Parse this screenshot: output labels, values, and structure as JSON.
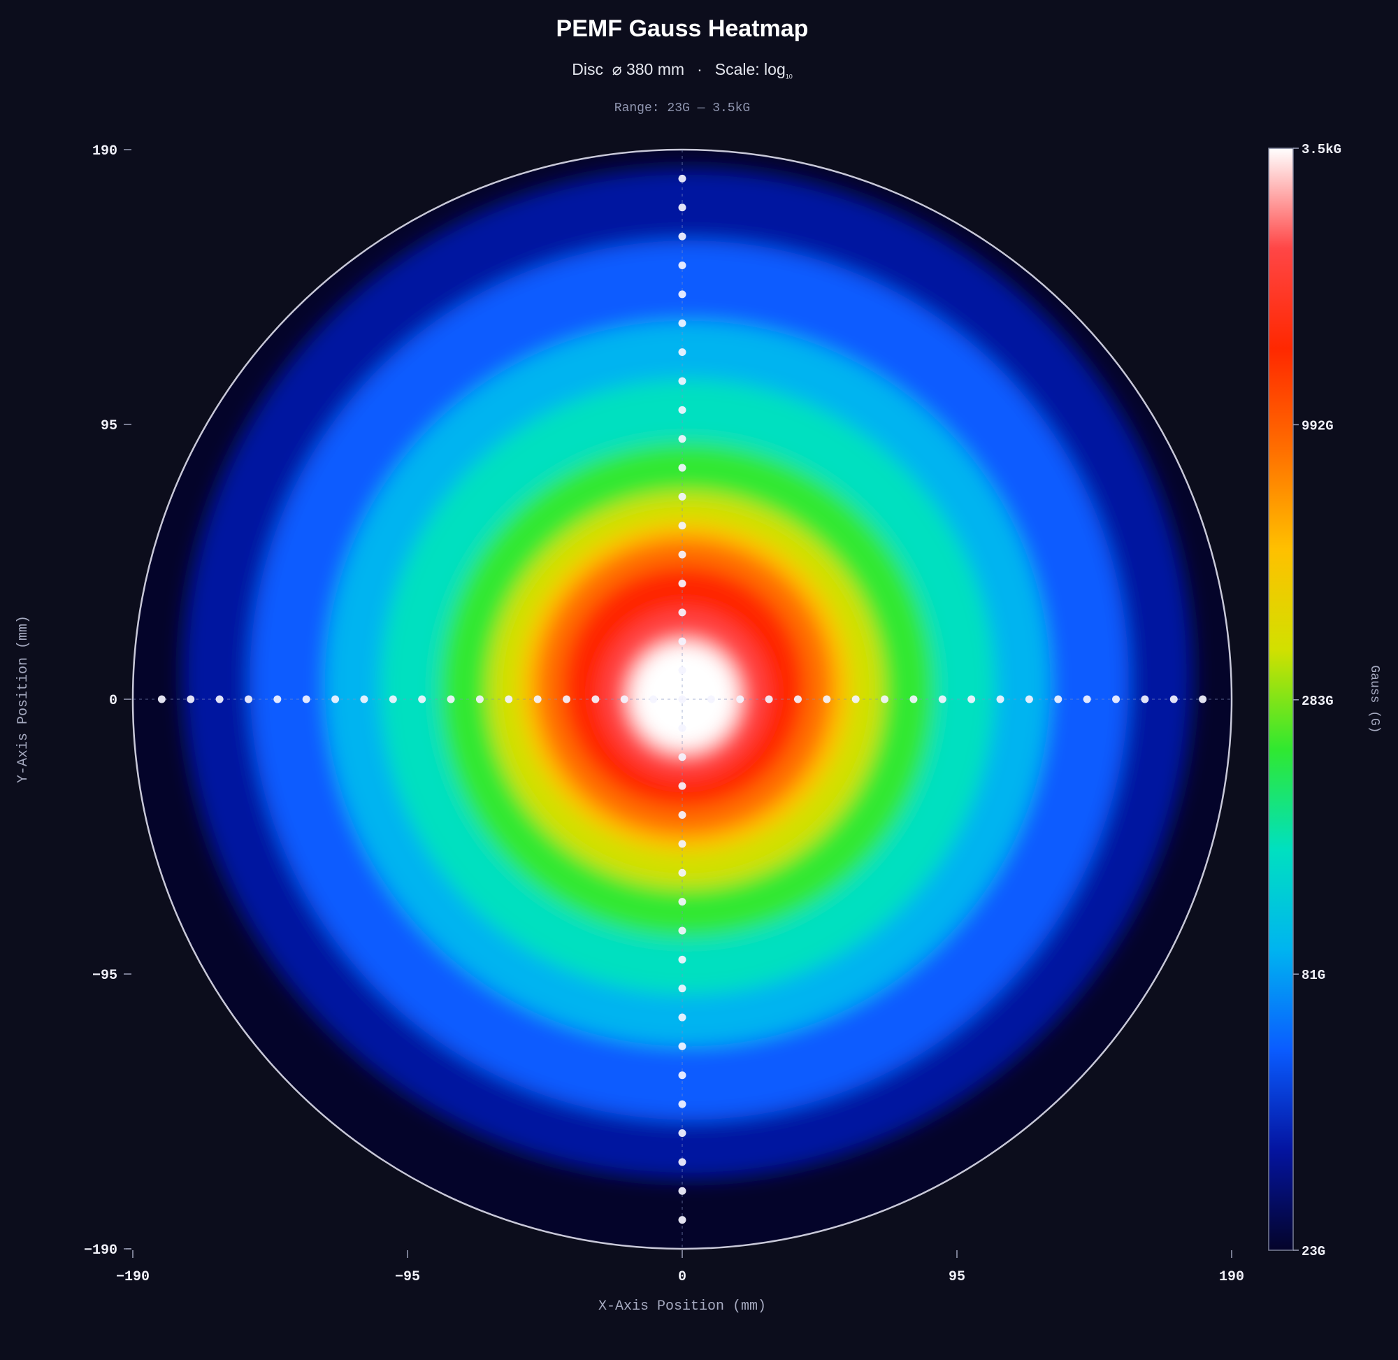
{
  "title": "PEMF Gauss Heatmap",
  "subtitle": {
    "disc": "Disc",
    "diameter": "⌀ 380 mm",
    "separator": "·",
    "scale_label": "Scale: log",
    "scale_sub": "10"
  },
  "range_text": "Range: 23G — 3.5kG",
  "chart_data": {
    "type": "heatmap",
    "title": "PEMF Gauss Heatmap",
    "xlabel": "X-Axis Position (mm)",
    "ylabel": "Y-Axis Position (mm)",
    "xlim": [
      -190,
      190
    ],
    "ylim": [
      -190,
      190
    ],
    "x_ticks": [
      -190,
      -95,
      0,
      95,
      190
    ],
    "y_ticks": [
      190,
      95,
      0,
      -95,
      -190
    ],
    "disc_diameter_mm": 380,
    "scale": "log10",
    "colorbar": {
      "label": "Gauss (G)",
      "min": 23,
      "max": 3500,
      "tick_values": [
        3500,
        992,
        283,
        81,
        23
      ],
      "tick_labels": [
        "3.5kG",
        "992G",
        "283G",
        "81G",
        "23G"
      ],
      "colors": [
        "#04042a",
        "#0414a0",
        "#0a5cff",
        "#00b4f0",
        "#00e0c0",
        "#30e830",
        "#d2e000",
        "#ffc000",
        "#ff6e00",
        "#ff2800",
        "#ff4646",
        "#ffffff"
      ]
    },
    "field_model": {
      "core_center": [
        3,
        10
      ],
      "core_radius_mm": 27,
      "peak_gauss": 3500,
      "background_gauss": 23
    },
    "measurement_points": {
      "step_mm": 10,
      "x_axis": [
        -180,
        -170,
        -160,
        -150,
        -140,
        -130,
        -120,
        -110,
        -100,
        -90,
        -80,
        -70,
        -60,
        -50,
        -40,
        -30,
        -20,
        -10,
        0,
        10,
        20,
        30,
        40,
        50,
        60,
        70,
        80,
        90,
        100,
        110,
        120,
        130,
        140,
        150,
        160,
        170,
        180
      ],
      "y_axis": [
        180,
        170,
        160,
        150,
        140,
        130,
        120,
        110,
        100,
        90,
        80,
        70,
        60,
        50,
        40,
        30,
        20,
        10,
        -10,
        -20,
        -30,
        -40,
        -50,
        -60,
        -70,
        -80,
        -90,
        -100,
        -110,
        -120,
        -130,
        -140,
        -150,
        -160,
        -170,
        -180
      ]
    }
  }
}
